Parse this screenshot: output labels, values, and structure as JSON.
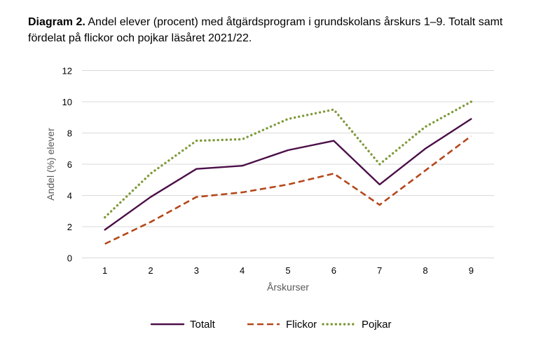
{
  "title": {
    "bold": "Diagram 2.",
    "text": "Andel elever (procent) med åtgärdsprogram i grundskolans årskurs 1–9. Totalt samt fördelat på flickor och pojkar läsåret 2021/22."
  },
  "chart_data": {
    "type": "line",
    "categories": [
      "1",
      "2",
      "3",
      "4",
      "5",
      "6",
      "7",
      "8",
      "9"
    ],
    "series": [
      {
        "name": "Totalt",
        "values": [
          1.8,
          3.9,
          5.7,
          5.9,
          6.9,
          7.5,
          4.7,
          7.0,
          8.9
        ],
        "color": "#4b0f48",
        "style": "solid"
      },
      {
        "name": "Flickor",
        "values": [
          0.9,
          2.3,
          3.9,
          4.2,
          4.7,
          5.4,
          3.4,
          5.6,
          7.8
        ],
        "color": "#b5471a",
        "style": "dashed"
      },
      {
        "name": "Pojkar",
        "values": [
          2.6,
          5.4,
          7.5,
          7.6,
          8.9,
          9.5,
          6.0,
          8.4,
          10.0
        ],
        "color": "#7e9a3a",
        "style": "dotted"
      }
    ],
    "xlabel": "Årskurser",
    "ylabel": "Andel (%) elever",
    "ylim": [
      0,
      12
    ],
    "yticks": [
      "0",
      "2",
      "4",
      "6",
      "8",
      "10",
      "12"
    ],
    "grid": true,
    "legend": "bottom"
  }
}
